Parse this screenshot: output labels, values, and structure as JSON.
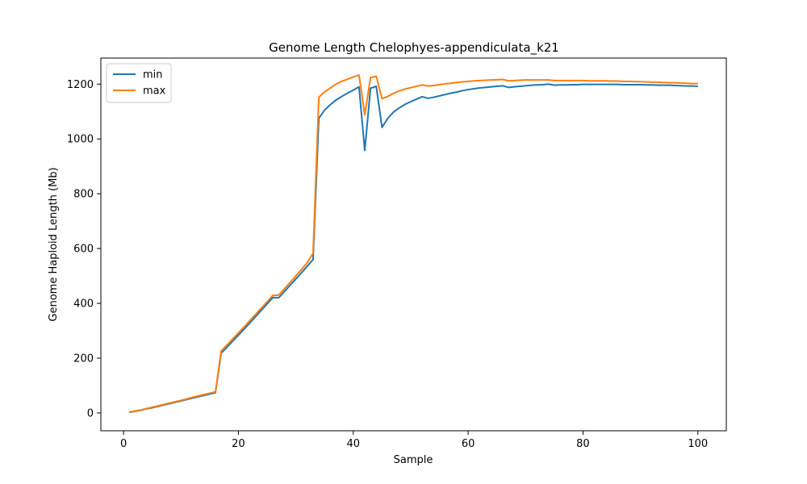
{
  "chart_data": {
    "type": "line",
    "title": "Genome Length Chelophyes-appendiculata_k21",
    "xlabel": "Sample",
    "ylabel": "Genome Haploid Length (Mb)",
    "xlim": [
      -3.95,
      104.95
    ],
    "ylim": [
      -65,
      1295
    ],
    "xticks": [
      0,
      20,
      40,
      60,
      80,
      100
    ],
    "yticks": [
      0,
      200,
      400,
      600,
      800,
      1000,
      1200
    ],
    "grid": false,
    "legend_position": "top-left",
    "x": [
      1,
      2,
      3,
      4,
      5,
      6,
      7,
      8,
      9,
      10,
      11,
      12,
      13,
      14,
      15,
      16,
      17,
      18,
      19,
      20,
      21,
      22,
      23,
      24,
      25,
      26,
      27,
      28,
      29,
      30,
      31,
      32,
      33,
      34,
      35,
      36,
      37,
      38,
      39,
      40,
      41,
      42,
      43,
      44,
      45,
      46,
      47,
      48,
      49,
      50,
      51,
      52,
      53,
      54,
      55,
      56,
      57,
      58,
      59,
      60,
      61,
      62,
      63,
      64,
      65,
      66,
      67,
      68,
      69,
      70,
      71,
      72,
      73,
      74,
      75,
      76,
      77,
      78,
      79,
      80,
      81,
      82,
      83,
      84,
      85,
      86,
      87,
      88,
      89,
      90,
      91,
      92,
      93,
      94,
      95,
      96,
      97,
      98,
      99,
      100
    ],
    "series": [
      {
        "name": "min",
        "color": "#1f77b4",
        "values": [
          2,
          6,
          10,
          15,
          19,
          24,
          29,
          34,
          39,
          44,
          49,
          54,
          59,
          64,
          69,
          74,
          218,
          240,
          262,
          284,
          306,
          329,
          352,
          375,
          398,
          421,
          420,
          443,
          466,
          489,
          512,
          536,
          560,
          1075,
          1105,
          1125,
          1142,
          1155,
          1167,
          1178,
          1190,
          958,
          1185,
          1192,
          1042,
          1075,
          1098,
          1113,
          1126,
          1136,
          1145,
          1154,
          1148,
          1152,
          1157,
          1162,
          1167,
          1171,
          1176,
          1180,
          1183,
          1186,
          1188,
          1190,
          1192,
          1194,
          1188,
          1190,
          1192,
          1194,
          1196,
          1197,
          1198,
          1200,
          1196,
          1197,
          1197,
          1198,
          1198,
          1199,
          1199,
          1199,
          1199,
          1199,
          1199,
          1199,
          1198,
          1198,
          1198,
          1198,
          1197,
          1197,
          1196,
          1196,
          1196,
          1195,
          1194,
          1193,
          1193,
          1192
        ]
      },
      {
        "name": "max",
        "color": "#ff7f0e",
        "values": [
          3,
          7,
          11,
          16,
          21,
          26,
          31,
          36,
          41,
          46,
          51,
          57,
          62,
          67,
          72,
          77,
          226,
          248,
          270,
          292,
          314,
          337,
          360,
          383,
          406,
          429,
          430,
          453,
          476,
          500,
          524,
          549,
          583,
          1152,
          1172,
          1186,
          1200,
          1210,
          1218,
          1226,
          1233,
          1088,
          1224,
          1229,
          1147,
          1155,
          1166,
          1175,
          1182,
          1187,
          1192,
          1197,
          1193,
          1195,
          1198,
          1201,
          1203,
          1206,
          1208,
          1210,
          1212,
          1213,
          1214,
          1215,
          1216,
          1217,
          1212,
          1213,
          1214,
          1215,
          1215,
          1215,
          1215,
          1215,
          1213,
          1213,
          1213,
          1213,
          1213,
          1213,
          1212,
          1212,
          1212,
          1212,
          1211,
          1211,
          1210,
          1210,
          1209,
          1209,
          1208,
          1207,
          1207,
          1206,
          1205,
          1205,
          1204,
          1203,
          1202,
          1202
        ]
      }
    ]
  }
}
